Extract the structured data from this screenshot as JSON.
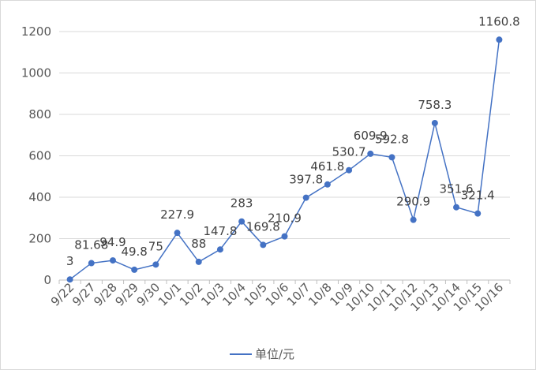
{
  "chart_data": {
    "type": "line",
    "title": "",
    "xlabel": "",
    "ylabel": "",
    "categories": [
      "9/22",
      "9/27",
      "9/28",
      "9/29",
      "9/30",
      "10/1",
      "10/2",
      "10/3",
      "10/4",
      "10/5",
      "10/6",
      "10/7",
      "10/8",
      "10/9",
      "10/10",
      "10/11",
      "10/12",
      "10/13",
      "10/14",
      "10/15",
      "10/16"
    ],
    "series": [
      {
        "name": "单位/元",
        "values": [
          3,
          81.68,
          94.9,
          49.8,
          75,
          227.9,
          88,
          147.8,
          283,
          169.8,
          210.9,
          397.8,
          461.8,
          530.7,
          609.9,
          592.8,
          290.9,
          758.3,
          351.6,
          321.4,
          1160.8
        ],
        "labels": [
          "3",
          "81.68",
          "94.9",
          "49.8",
          "75",
          "227.9",
          "88",
          "147.8",
          "283",
          "169.8",
          "210.9",
          "397.8",
          "461.8",
          "530.7",
          "609.9",
          "592.8",
          "290.9",
          "758.3",
          "351.6",
          "321.4",
          "1160.8"
        ]
      }
    ],
    "ylim": [
      0,
      1200
    ],
    "yticks": [
      0,
      200,
      400,
      600,
      800,
      1000,
      1200
    ],
    "grid": true,
    "legend_position": "bottom",
    "colors": {
      "series": "#4472c4",
      "grid": "#d9d9d9",
      "axis": "#bfbfbf",
      "text": "#595959"
    }
  }
}
